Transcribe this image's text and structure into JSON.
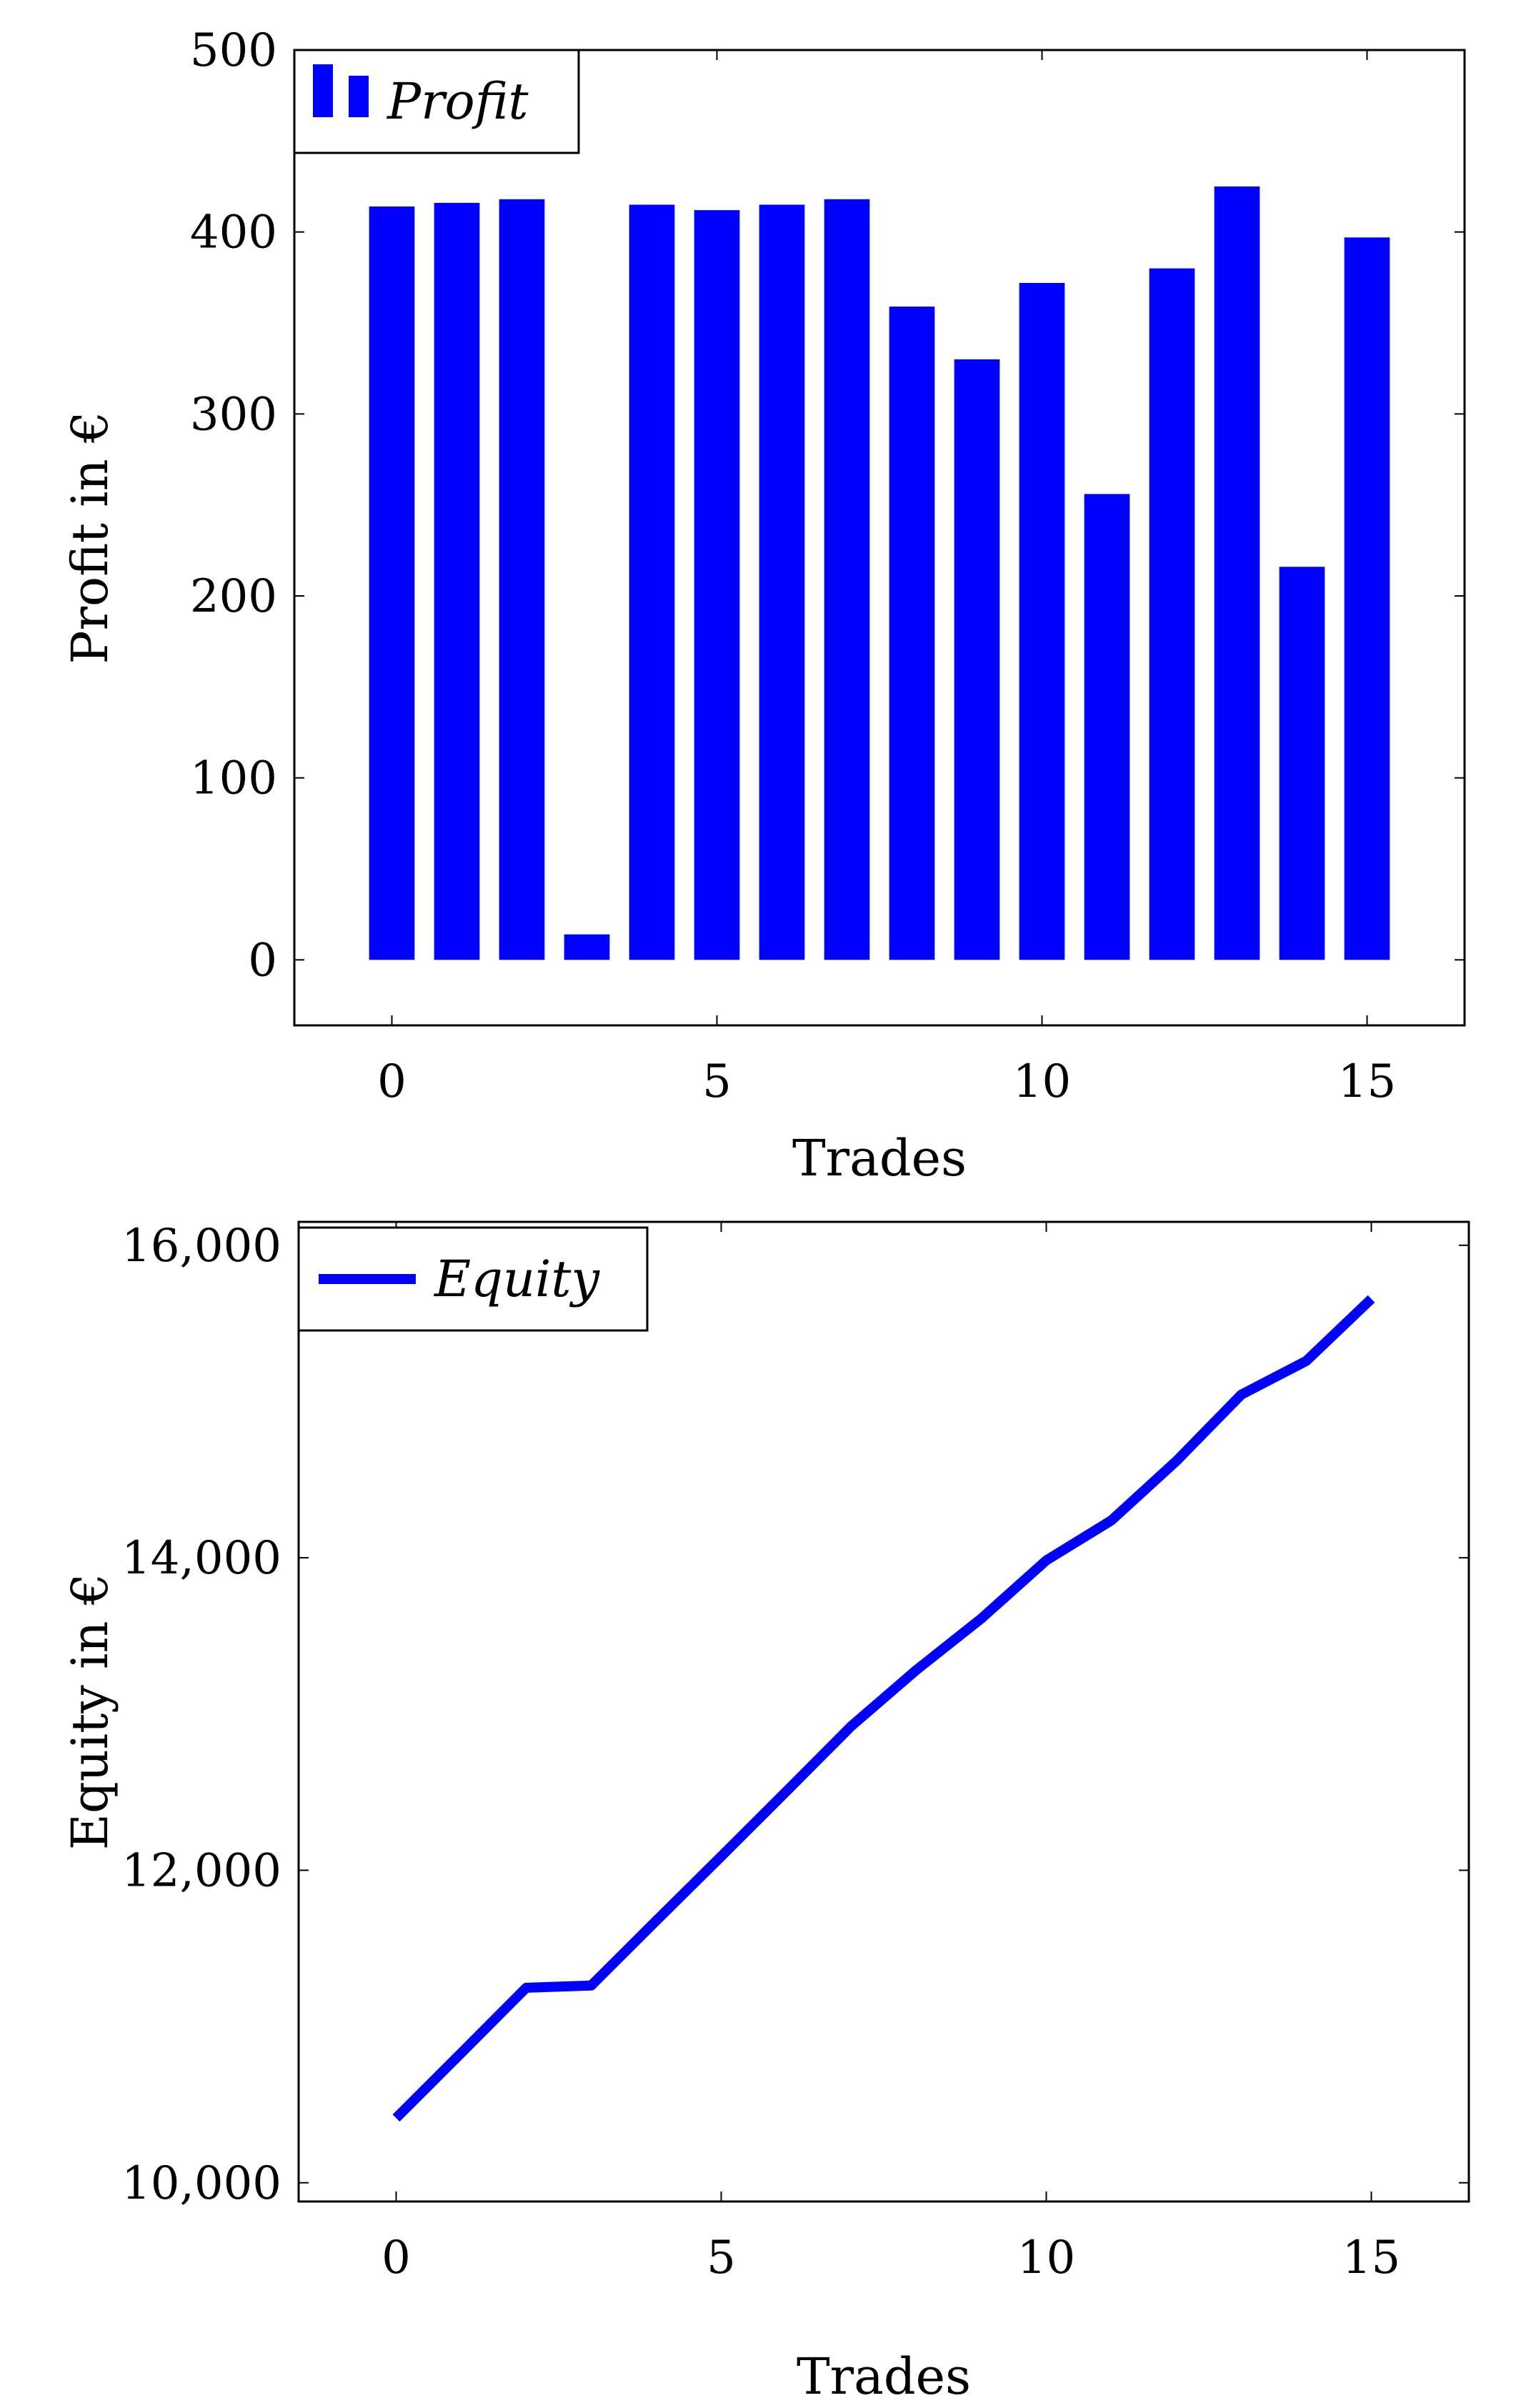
{
  "chart_data": [
    {
      "type": "bar",
      "x": [
        0,
        1,
        2,
        3,
        4,
        5,
        6,
        7,
        8,
        9,
        10,
        11,
        12,
        13,
        14,
        15
      ],
      "series": [
        {
          "name": "Profit",
          "values": [
            414,
            416,
            418,
            14,
            415,
            412,
            415,
            418,
            359,
            330,
            372,
            256,
            380,
            425,
            216,
            397
          ],
          "color": "#0000ff"
        }
      ],
      "xlabel": "Trades",
      "ylabel": "Profit in €",
      "xlim": [
        -1.5,
        16.5
      ],
      "ylim": [
        -36,
        500
      ],
      "xticks": [
        0,
        5,
        10,
        15
      ],
      "yticks": [
        0,
        100,
        200,
        300,
        400,
        500
      ],
      "xtick_labels": [
        "0",
        "5",
        "10",
        "15"
      ],
      "ytick_labels": [
        "0",
        "100",
        "200",
        "300",
        "400",
        "500"
      ],
      "legend": "top-left",
      "grid": false
    },
    {
      "type": "line",
      "x": [
        0,
        1,
        2,
        3,
        4,
        5,
        6,
        7,
        8,
        9,
        10,
        11,
        12,
        13,
        14,
        15
      ],
      "series": [
        {
          "name": "Equity",
          "values": [
            10414,
            10830,
            11248,
            11262,
            11677,
            12089,
            12504,
            12922,
            13281,
            13611,
            13983,
            14239,
            14619,
            15044,
            15260,
            15657
          ],
          "color": "#0000ff"
        }
      ],
      "xlabel": "Trades",
      "ylabel": "Equity in €",
      "xlim": [
        -1.5,
        16.5
      ],
      "ylim": [
        9880,
        16150
      ],
      "xticks": [
        0,
        5,
        10,
        15
      ],
      "yticks": [
        10000,
        12000,
        14000,
        16000
      ],
      "xtick_labels": [
        "0",
        "5",
        "10",
        "15"
      ],
      "ytick_labels": [
        "10,000",
        "12,000",
        "14,000",
        "16,000"
      ],
      "legend": "top-left",
      "grid": false
    }
  ]
}
